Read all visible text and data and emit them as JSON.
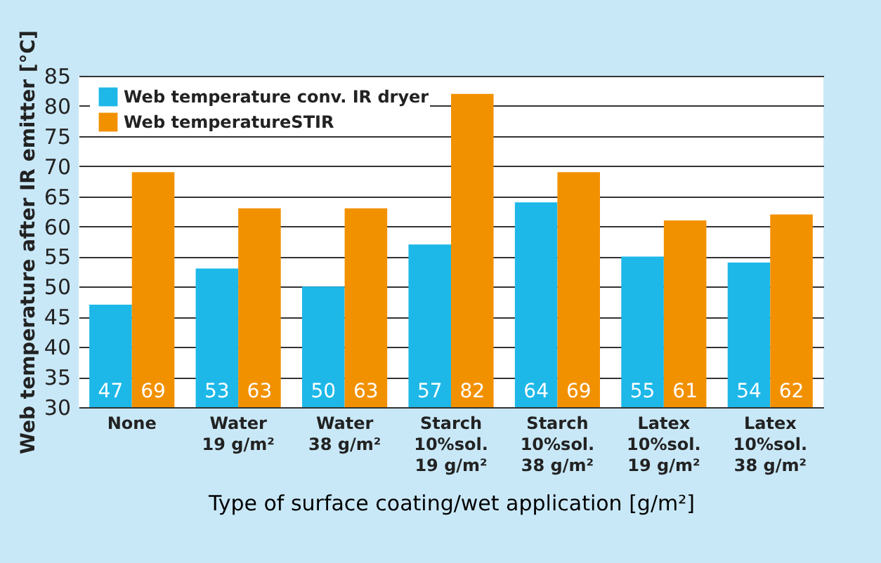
{
  "chart_data": {
    "type": "bar",
    "xlabel": "Type of surface coating/wet application [g/m²]",
    "ylabel": "Web temperature after IR emitter  [°C]",
    "categories": [
      "None",
      "Water\n19 g/m²",
      "Water\n38 g/m²",
      "Starch\n10%sol.\n19 g/m²",
      "Starch\n10%sol.\n38 g/m²",
      "Latex\n10%sol.\n19 g/m²",
      "Latex\n10%sol.\n38 g/m²"
    ],
    "series": [
      {
        "name": "Web temperature conv. IR dryer",
        "color": "#1db8e8",
        "values": [
          47,
          53,
          50,
          57,
          64,
          55,
          54
        ]
      },
      {
        "name": "Web temperatureSTIR",
        "color": "#f29100",
        "values": [
          69,
          63,
          63,
          82,
          69,
          61,
          62
        ]
      }
    ],
    "ylim": [
      30,
      85
    ],
    "yticks": [
      30,
      35,
      40,
      45,
      50,
      55,
      60,
      65,
      70,
      75,
      80,
      85
    ],
    "grid": "y",
    "legend": "top left",
    "data_labels": true
  }
}
